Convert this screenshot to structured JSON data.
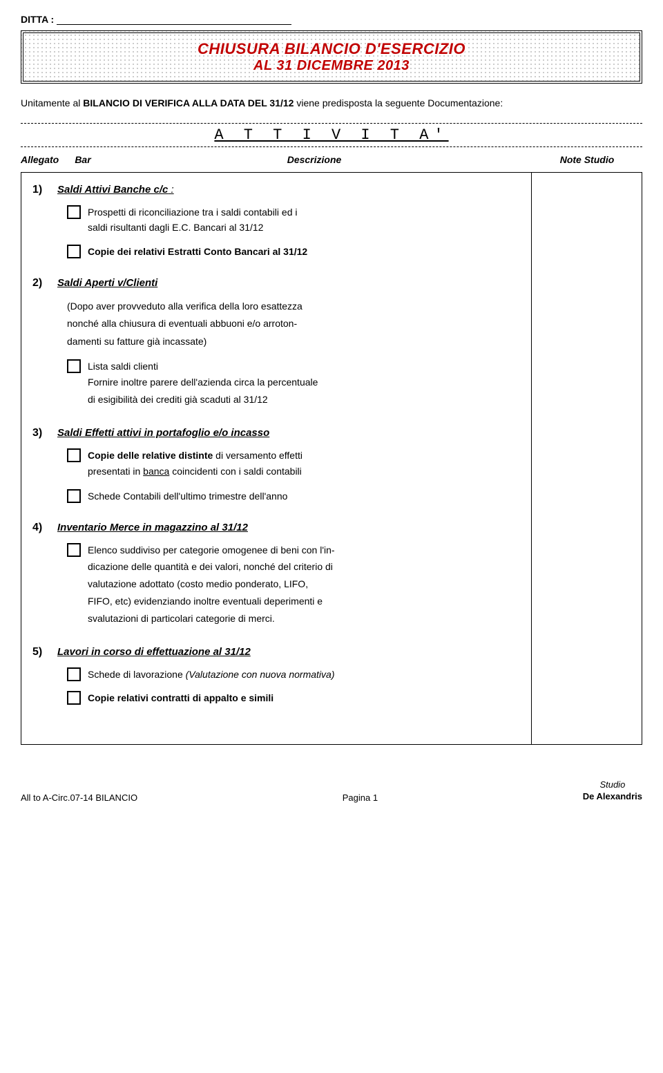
{
  "ditta_label": "DITTA :",
  "title": {
    "line1": "CHIUSURA BILANCIO D'ESERCIZIO",
    "line2": "AL 31 DICEMBRE 2013",
    "bg_pattern_color": "#bbbbbb",
    "text_color": "#c00000"
  },
  "intro": {
    "prefix": "Unitamente al ",
    "bold": "BILANCIO DI VERIFICA ALLA DATA DEL 31/12",
    "suffix": " viene predisposta la seguente Documentazione:"
  },
  "attivita_label": "A T T I V I T A'",
  "header": {
    "allegato": "Allegato",
    "bar": "Bar",
    "descrizione": "Descrizione",
    "note": "Note Studio"
  },
  "sections": [
    {
      "num": "1)",
      "title": "Saldi Attivi Banche c/c",
      "title_suffix": " :",
      "items": [
        {
          "type": "checkbox",
          "lines": [
            "Prospetti di riconciliazione tra i saldi contabili ed i",
            "saldi risultanti dagli E.C. Bancari al 31/12"
          ]
        },
        {
          "type": "checkbox",
          "bold": true,
          "lines": [
            "Copie dei relativi Estratti Conto Bancari al 31/12"
          ]
        }
      ]
    },
    {
      "num": "2)",
      "title": "Saldi Aperti v/Clienti",
      "sub_lines": [
        "(Dopo aver provveduto alla verifica della loro esattezza",
        "nonché alla chiusura di eventuali abbuoni e/o arroton-",
        "damenti su fatture già incassate)"
      ],
      "items": [
        {
          "type": "checkbox",
          "lines": [
            "Lista saldi clienti"
          ],
          "after_lines": [
            "Fornire inoltre parere dell'azienda circa la percentuale",
            "di esigibilità dei crediti già scaduti al 31/12"
          ]
        }
      ]
    },
    {
      "num": "3)",
      "title": "Saldi  Effetti attivi in portafoglio e/o incasso",
      "items": [
        {
          "type": "checkbox",
          "lines_html": "<span class='b'>Copie delle relative distinte</span> di versamento effetti",
          "after_lines_html": "presentati in <span class='u'>banca</span> coincidenti con i saldi contabili"
        },
        {
          "type": "checkbox",
          "lines": [
            "Schede Contabili dell'ultimo trimestre dell'anno"
          ]
        }
      ]
    },
    {
      "num": "4)",
      "title": "Inventario Merce in magazzino al 31/12",
      "items": [
        {
          "type": "checkbox",
          "lines": [
            "Elenco suddiviso per categorie omogenee di beni con l'in-"
          ],
          "after_lines": [
            "dicazione delle quantità e dei valori, nonché del criterio di",
            "valutazione adottato (costo medio ponderato, LIFO,",
            "FIFO, etc) evidenziando  inoltre eventuali deperimenti e",
            "svalutazioni di particolari categorie di merci."
          ]
        }
      ]
    },
    {
      "num": "5)",
      "title": "Lavori in corso di effettuazione al 31/12",
      "items": [
        {
          "type": "checkbox",
          "lines_html": "Schede di lavorazione <span class='i'>(Valutazione con nuova normativa)</span>"
        },
        {
          "type": "checkbox",
          "bold": true,
          "lines": [
            "Copie relativi contratti di appalto e simili"
          ]
        }
      ]
    }
  ],
  "footer": {
    "left": "All to A-Circ.07-14 BILANCIO",
    "center": "Pagina 1",
    "right_top": "Studio",
    "right_bottom": "De Alexandris"
  }
}
